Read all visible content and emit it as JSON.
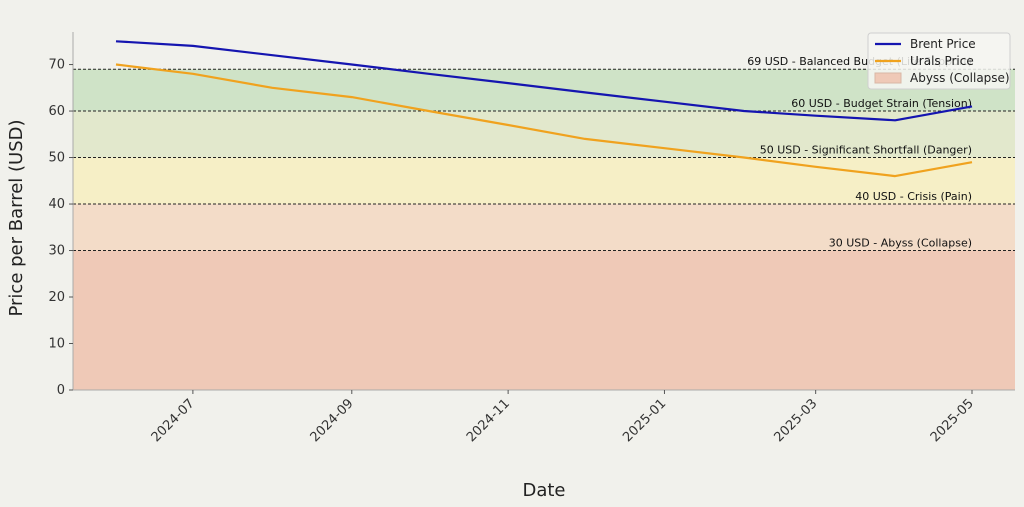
{
  "chart_data": {
    "type": "line",
    "title": "",
    "xlabel": "Date",
    "ylabel": "Price per Barrel (USD)",
    "ylim": [
      0,
      77
    ],
    "yticks": [
      0,
      10,
      20,
      30,
      40,
      50,
      60,
      70
    ],
    "x_ticks": [
      "2024-07",
      "2024-09",
      "2024-11",
      "2025-01",
      "2025-03",
      "2025-05"
    ],
    "x": [
      "2024-06",
      "2024-07",
      "2024-08",
      "2024-09",
      "2024-10",
      "2024-11",
      "2024-12",
      "2025-01",
      "2025-02",
      "2025-03",
      "2025-04",
      "2025-05"
    ],
    "series": [
      {
        "name": "Brent Price",
        "color": "#1515b0",
        "values": [
          75,
          74,
          72,
          70,
          68,
          66,
          64,
          62,
          60,
          59,
          58,
          61
        ]
      },
      {
        "name": "Urals Price",
        "color": "#f0a21e",
        "values": [
          70,
          68,
          65,
          63,
          60,
          57,
          54,
          52,
          50,
          48,
          46,
          49
        ]
      }
    ],
    "zones": [
      {
        "from": 0,
        "to": 30,
        "color": "#efc9b7"
      },
      {
        "from": 30,
        "to": 40,
        "color": "#f3dcc8"
      },
      {
        "from": 40,
        "to": 50,
        "color": "#f6efc6"
      },
      {
        "from": 50,
        "to": 60,
        "color": "#e2e8cc"
      },
      {
        "from": 60,
        "to": 69,
        "color": "#cfe3c7"
      }
    ],
    "reference_lines": [
      {
        "value": 69,
        "label": "69 USD - Balanced Budget (Life Support)"
      },
      {
        "value": 60,
        "label": "60 USD - Budget Strain (Tension)"
      },
      {
        "value": 50,
        "label": "50 USD - Significant Shortfall (Danger)"
      },
      {
        "value": 40,
        "label": "40 USD - Crisis (Pain)"
      },
      {
        "value": 30,
        "label": "30 USD - Abyss (Collapse)"
      }
    ],
    "legend": {
      "position": "top-right",
      "entries": [
        {
          "type": "line",
          "label": "Brent Price",
          "color": "#1515b0"
        },
        {
          "type": "line",
          "label": "Urals Price",
          "color": "#f0a21e"
        },
        {
          "type": "patch",
          "label": "Abyss (Collapse)",
          "color": "#efc9b7"
        }
      ]
    },
    "grid": false
  }
}
